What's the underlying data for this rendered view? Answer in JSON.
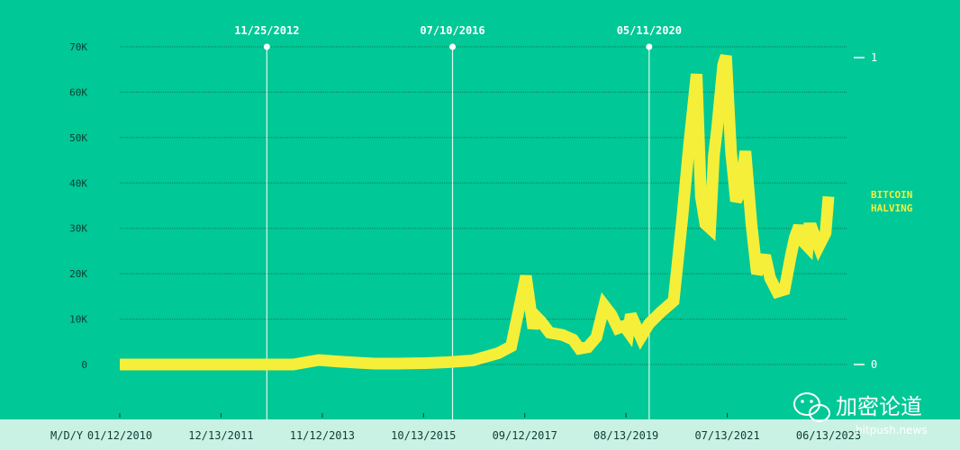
{
  "chart_data": {
    "type": "line",
    "x_axis_label": "M/D/Y",
    "x_tick_labels": [
      "01/12/2010",
      "12/13/2011",
      "11/12/2013",
      "10/13/2015",
      "09/12/2017",
      "08/13/2019",
      "07/13/2021",
      "06/13/2023"
    ],
    "y_tick_labels": [
      "0",
      "10K",
      "20K",
      "30K",
      "40K",
      "50K",
      "60K",
      "70K"
    ],
    "ylim": [
      0,
      70000
    ],
    "right_axis_tick_labels": [
      "0",
      "1"
    ],
    "grid": true,
    "legend": {
      "text_line1": "BITCOIN",
      "text_line2": "HALVING",
      "placement": "right"
    },
    "halvings": [
      {
        "label": "11/25/2012",
        "date": "2012-11-25"
      },
      {
        "label": "07/10/2016",
        "date": "2016-07-10"
      },
      {
        "label": "05/11/2020",
        "date": "2020-05-11"
      }
    ],
    "series": [
      {
        "color": "#f5ef3a",
        "points": [
          [
            "2010-01-12",
            0
          ],
          [
            "2011-01-01",
            0
          ],
          [
            "2012-01-01",
            0
          ],
          [
            "2012-06-01",
            0
          ],
          [
            "2013-01-01",
            0
          ],
          [
            "2013-06-01",
            0
          ],
          [
            "2013-12-01",
            1000
          ],
          [
            "2014-04-01",
            700
          ],
          [
            "2014-09-01",
            400
          ],
          [
            "2015-01-01",
            200
          ],
          [
            "2015-06-01",
            200
          ],
          [
            "2016-01-01",
            300
          ],
          [
            "2016-06-01",
            500
          ],
          [
            "2016-12-01",
            900
          ],
          [
            "2017-06-01",
            2500
          ],
          [
            "2017-09-01",
            4000
          ],
          [
            "2017-12-15",
            19500
          ],
          [
            "2018-02-05",
            8000
          ],
          [
            "2018-03-01",
            10500
          ],
          [
            "2018-04-01",
            9500
          ],
          [
            "2018-06-01",
            7000
          ],
          [
            "2018-09-01",
            6500
          ],
          [
            "2018-11-15",
            5500
          ],
          [
            "2019-01-01",
            3500
          ],
          [
            "2019-03-01",
            3800
          ],
          [
            "2019-05-01",
            6000
          ],
          [
            "2019-06-26",
            13000
          ],
          [
            "2019-08-15",
            11000
          ],
          [
            "2019-10-01",
            8000
          ],
          [
            "2019-11-15",
            8500
          ],
          [
            "2019-12-15",
            7200
          ],
          [
            "2020-01-01",
            11000
          ],
          [
            "2020-03-13",
            6000
          ],
          [
            "2020-05-11",
            9000
          ],
          [
            "2020-08-01",
            11500
          ],
          [
            "2020-11-01",
            14000
          ],
          [
            "2021-01-01",
            32000
          ],
          [
            "2021-02-15",
            47000
          ],
          [
            "2021-04-14",
            64000
          ],
          [
            "2021-05-15",
            37000
          ],
          [
            "2021-06-15",
            31000
          ],
          [
            "2021-07-20",
            30000
          ],
          [
            "2021-08-15",
            46000
          ],
          [
            "2021-09-07",
            52000
          ],
          [
            "2021-10-20",
            66000
          ],
          [
            "2021-11-10",
            68000
          ],
          [
            "2021-12-15",
            47000
          ],
          [
            "2022-01-20",
            36000
          ],
          [
            "2022-02-20",
            38000
          ],
          [
            "2022-03-28",
            47000
          ],
          [
            "2022-05-10",
            31000
          ],
          [
            "2022-06-18",
            20000
          ],
          [
            "2022-08-15",
            24000
          ],
          [
            "2022-09-20",
            19000
          ],
          [
            "2022-11-09",
            16000
          ],
          [
            "2022-12-31",
            16500
          ],
          [
            "2023-02-15",
            24000
          ],
          [
            "2023-03-15",
            28000
          ],
          [
            "2023-04-14",
            30500
          ],
          [
            "2023-05-15",
            27000
          ],
          [
            "2023-06-15",
            26000
          ],
          [
            "2023-06-25",
            30000
          ],
          [
            "2023-07-15",
            30000
          ],
          [
            "2023-09-01",
            26000
          ],
          [
            "2023-10-20",
            29000
          ],
          [
            "2023-11-10",
            37000
          ]
        ]
      }
    ]
  },
  "watermark": {
    "cn": "加密论道",
    "url": "bitpush.news"
  },
  "colors": {
    "background": "#00c896",
    "line": "#f5ef3a",
    "grid": "#0e3d33",
    "halving_line": "#dff7ef"
  }
}
